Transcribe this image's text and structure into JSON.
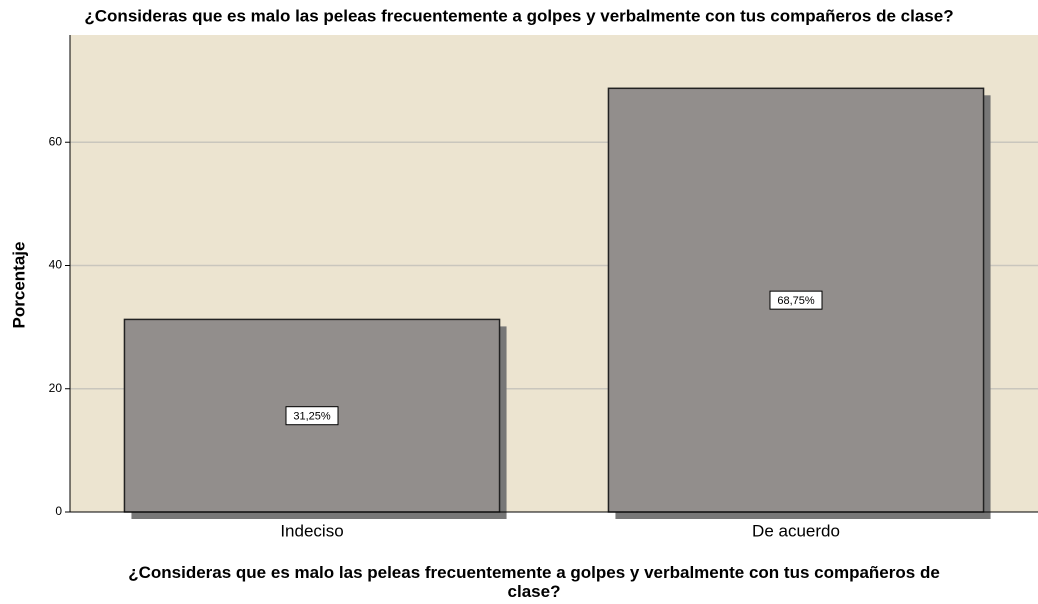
{
  "chart_data": {
    "type": "bar",
    "title": "¿Consideras que es malo las peleas frecuentemente a golpes y verbalmente con tus compañeros de clase?",
    "x_label": "¿Consideras que es malo las peleas frecuentemente a golpes y verbalmente con tus compañeros de clase?",
    "y_label": "Porcentaje",
    "categories": [
      "Indeciso",
      "De acuerdo"
    ],
    "values": [
      31.25,
      68.75
    ],
    "value_labels": [
      "31,25%",
      "68,75%"
    ],
    "color": "#928e8c",
    "ylim": [
      0,
      77.4
    ],
    "yticks": [
      0,
      20,
      40,
      60
    ],
    "grid": true
  }
}
